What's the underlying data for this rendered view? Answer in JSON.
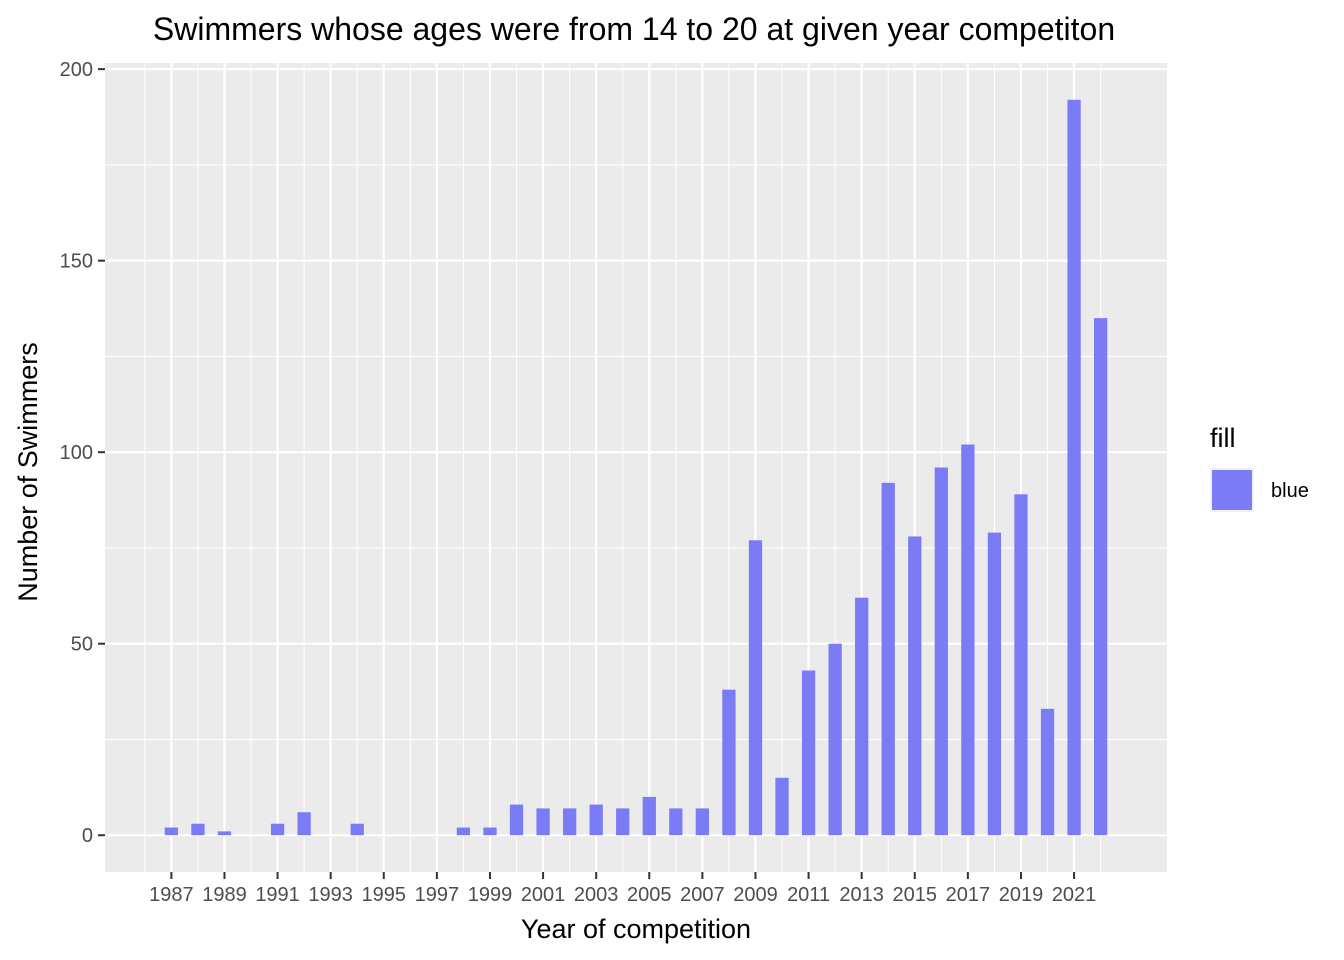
{
  "chart_data": {
    "type": "bar",
    "title": "Swimmers whose ages were from 14 to 20 at given year competiton",
    "xlabel": "Year of competition",
    "ylabel": "Number of Swimmers",
    "x": [
      1987,
      1988,
      1989,
      1991,
      1992,
      1994,
      1998,
      1999,
      2000,
      2001,
      2002,
      2003,
      2004,
      2005,
      2006,
      2007,
      2008,
      2009,
      2010,
      2011,
      2012,
      2013,
      2014,
      2015,
      2016,
      2017,
      2018,
      2019,
      2020,
      2021,
      2022
    ],
    "values": [
      2,
      3,
      1,
      3,
      6,
      3,
      2,
      2,
      8,
      7,
      7,
      8,
      7,
      10,
      7,
      7,
      38,
      77,
      15,
      43,
      50,
      62,
      92,
      78,
      96,
      102,
      79,
      89,
      33,
      192,
      135
    ],
    "xlim": [
      1984.5,
      2024.5
    ],
    "ylim": [
      -9.6,
      201.6
    ],
    "x_ticks": [
      "1987",
      "1989",
      "1991",
      "1993",
      "1995",
      "1997",
      "1999",
      "2001",
      "2003",
      "2005",
      "2007",
      "2009",
      "2011",
      "2013",
      "2015",
      "2017",
      "2019",
      "2021"
    ],
    "y_ticks": [
      "0",
      "50",
      "100",
      "150",
      "200"
    ],
    "grid": true,
    "bar_color": "#7b7bf6",
    "panel_background": "#ebebeb",
    "legend": {
      "title": "fill",
      "items": [
        {
          "label": "blue",
          "color": "#7b7bf6"
        }
      ],
      "placement": "right"
    }
  }
}
